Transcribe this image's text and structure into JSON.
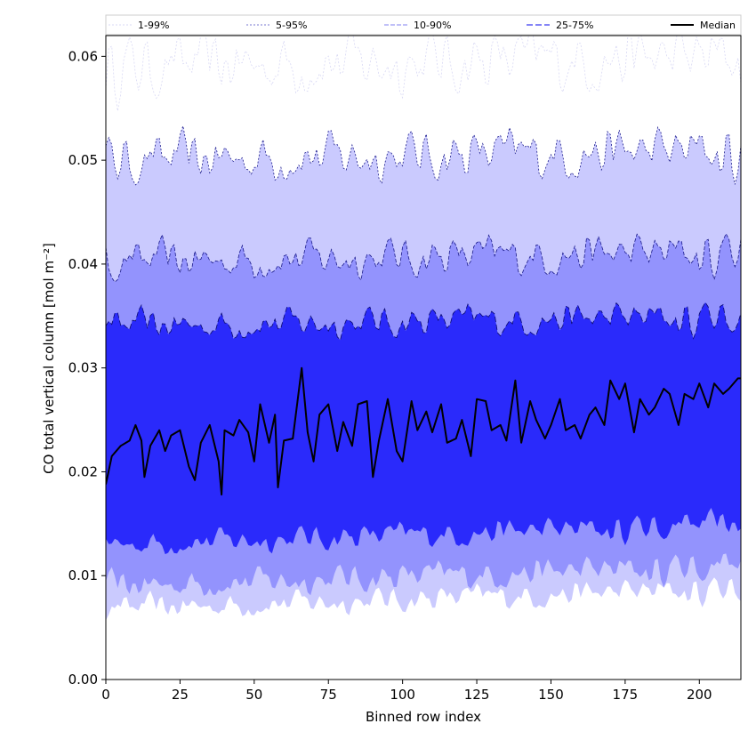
{
  "chart_data": {
    "type": "area",
    "xlabel": "Binned row index",
    "ylabel": "CO total vertical column [mol m⁻²]",
    "xlim": [
      0,
      214
    ],
    "ylim": [
      0,
      0.062
    ],
    "xticks": [
      0,
      25,
      50,
      75,
      100,
      125,
      150,
      175,
      200
    ],
    "yticks": [
      0.0,
      0.01,
      0.02,
      0.03,
      0.04,
      0.05,
      0.06
    ],
    "ytick_labels": [
      "0.00",
      "0.01",
      "0.02",
      "0.03",
      "0.04",
      "0.05",
      "0.06"
    ],
    "grid": false,
    "legend_position": "top, horizontal",
    "bands": [
      {
        "name": "1-99%",
        "lower": 0.0055,
        "upper": 0.059,
        "fill": "#ffffff",
        "line": "#d8d8f4",
        "dash": "2,2"
      },
      {
        "name": "5-95%",
        "lower": 0.0068,
        "upper": 0.05,
        "fill": "#cacafe",
        "line": "#1a1a8a",
        "dash": "2,2"
      },
      {
        "name": "10-90%",
        "lower": 0.009,
        "upper": 0.0402,
        "fill": "#9393fd",
        "line": "#1a1a8a",
        "dash": "4,2"
      },
      {
        "name": "25-75%",
        "lower": 0.013,
        "upper": 0.034,
        "fill": "#2a2afb",
        "line": "#0a0a70",
        "dash": "6,3"
      }
    ],
    "median": {
      "name": "Median",
      "x": [
        0,
        2,
        5,
        8,
        10,
        12,
        13,
        15,
        18,
        20,
        22,
        25,
        28,
        30,
        32,
        35,
        38,
        39,
        40,
        43,
        45,
        48,
        50,
        52,
        55,
        57,
        58,
        60,
        63,
        66,
        68,
        70,
        72,
        75,
        78,
        80,
        83,
        85,
        88,
        90,
        92,
        95,
        98,
        100,
        103,
        105,
        108,
        110,
        113,
        115,
        118,
        120,
        123,
        125,
        128,
        130,
        133,
        135,
        138,
        140,
        143,
        145,
        148,
        150,
        153,
        155,
        158,
        160,
        163,
        165,
        168,
        170,
        173,
        175,
        178,
        180,
        183,
        185,
        188,
        190,
        193,
        195,
        198,
        200,
        203,
        205,
        208,
        210,
        213,
        214
      ],
      "y": [
        0.0188,
        0.0215,
        0.0225,
        0.023,
        0.0245,
        0.023,
        0.0195,
        0.0225,
        0.024,
        0.022,
        0.0235,
        0.024,
        0.0205,
        0.0192,
        0.0228,
        0.0245,
        0.021,
        0.0178,
        0.024,
        0.0235,
        0.025,
        0.0238,
        0.021,
        0.0265,
        0.0228,
        0.0255,
        0.0185,
        0.023,
        0.0232,
        0.03,
        0.0238,
        0.021,
        0.0255,
        0.0265,
        0.022,
        0.0248,
        0.0225,
        0.0265,
        0.0268,
        0.0195,
        0.023,
        0.027,
        0.022,
        0.021,
        0.0268,
        0.024,
        0.0258,
        0.0238,
        0.0265,
        0.0228,
        0.0232,
        0.025,
        0.0215,
        0.027,
        0.0268,
        0.024,
        0.0245,
        0.023,
        0.0288,
        0.0228,
        0.0268,
        0.025,
        0.0232,
        0.0245,
        0.027,
        0.024,
        0.0245,
        0.0232,
        0.0255,
        0.0262,
        0.0245,
        0.0288,
        0.027,
        0.0285,
        0.0238,
        0.027,
        0.0255,
        0.0262,
        0.028,
        0.0275,
        0.0245,
        0.0275,
        0.027,
        0.0285,
        0.0262,
        0.0285,
        0.0275,
        0.028,
        0.029,
        0.029
      ]
    },
    "legend": [
      "1-99%",
      "5-95%",
      "10-90%",
      "25-75%",
      "Median"
    ]
  }
}
